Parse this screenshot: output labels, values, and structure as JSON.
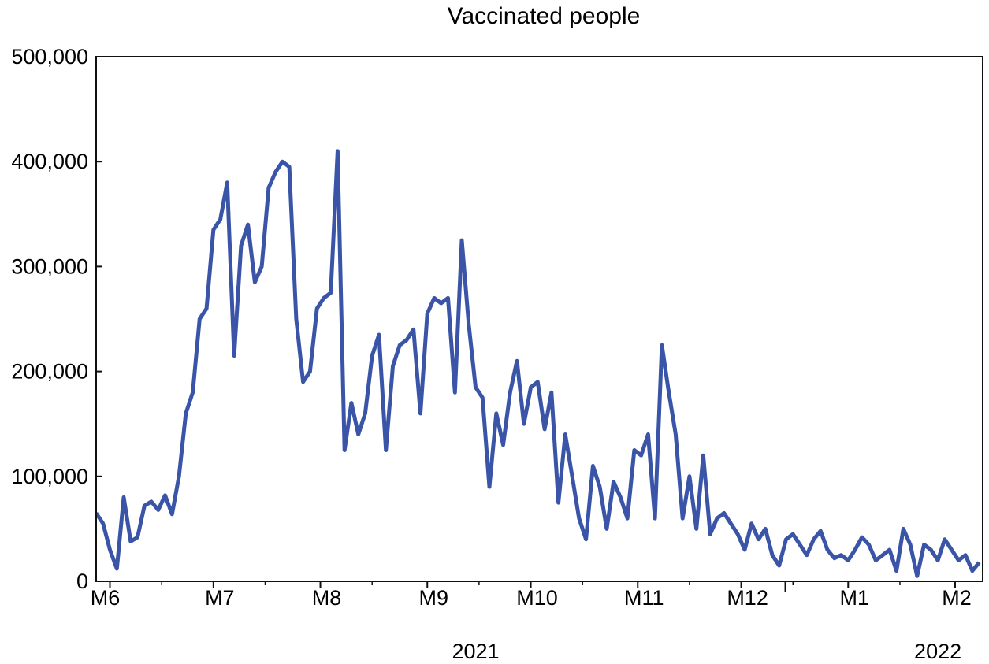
{
  "chart_data": {
    "type": "line",
    "title": "Vaccinated people",
    "xlabel": "",
    "ylabel": "",
    "ylim": [
      0,
      500000
    ],
    "yticks": [
      {
        "value": 0,
        "label": "0"
      },
      {
        "value": 100000,
        "label": "100,000"
      },
      {
        "value": 200000,
        "label": "200,000"
      },
      {
        "value": 300000,
        "label": "300,000"
      },
      {
        "value": 400000,
        "label": "400,000"
      },
      {
        "value": 500000,
        "label": "500,000"
      }
    ],
    "xlim": [
      "2021-05-28",
      "2022-02-09"
    ],
    "month_ticks": [
      {
        "date": "2021-06-01",
        "label": "M6"
      },
      {
        "date": "2021-07-01",
        "label": "M7"
      },
      {
        "date": "2021-08-01",
        "label": "M8"
      },
      {
        "date": "2021-09-01",
        "label": "M9"
      },
      {
        "date": "2021-10-01",
        "label": "M10"
      },
      {
        "date": "2021-11-01",
        "label": "M11"
      },
      {
        "date": "2021-12-01",
        "label": "M12"
      },
      {
        "date": "2022-01-01",
        "label": "M1"
      },
      {
        "date": "2022-02-01",
        "label": "M2"
      }
    ],
    "year_labels": [
      {
        "date": "2021-09-15",
        "label": "2021"
      },
      {
        "date": "2022-01-27",
        "label": "2022"
      }
    ],
    "grid": false,
    "line_color": "#3a55a8",
    "series": [
      {
        "x": [
          "2021-05-28",
          "2021-05-30",
          "2021-06-01",
          "2021-06-03",
          "2021-06-05",
          "2021-06-07",
          "2021-06-09",
          "2021-06-11",
          "2021-06-13",
          "2021-06-15",
          "2021-06-17",
          "2021-06-19",
          "2021-06-21",
          "2021-06-23",
          "2021-06-25",
          "2021-06-27",
          "2021-06-29",
          "2021-07-01",
          "2021-07-03",
          "2021-07-05",
          "2021-07-07",
          "2021-07-09",
          "2021-07-11",
          "2021-07-13",
          "2021-07-15",
          "2021-07-17",
          "2021-07-19",
          "2021-07-21",
          "2021-07-23",
          "2021-07-25",
          "2021-07-27",
          "2021-07-29",
          "2021-07-31",
          "2021-08-02",
          "2021-08-04",
          "2021-08-06",
          "2021-08-08",
          "2021-08-10",
          "2021-08-12",
          "2021-08-14",
          "2021-08-16",
          "2021-08-18",
          "2021-08-20",
          "2021-08-22",
          "2021-08-24",
          "2021-08-26",
          "2021-08-28",
          "2021-08-30",
          "2021-09-01",
          "2021-09-03",
          "2021-09-05",
          "2021-09-07",
          "2021-09-09",
          "2021-09-11",
          "2021-09-13",
          "2021-09-15",
          "2021-09-17",
          "2021-09-19",
          "2021-09-21",
          "2021-09-23",
          "2021-09-25",
          "2021-09-27",
          "2021-09-29",
          "2021-10-01",
          "2021-10-03",
          "2021-10-05",
          "2021-10-07",
          "2021-10-09",
          "2021-10-11",
          "2021-10-13",
          "2021-10-15",
          "2021-10-17",
          "2021-10-19",
          "2021-10-21",
          "2021-10-23",
          "2021-10-25",
          "2021-10-27",
          "2021-10-29",
          "2021-10-31",
          "2021-11-02",
          "2021-11-04",
          "2021-11-06",
          "2021-11-08",
          "2021-11-10",
          "2021-11-12",
          "2021-11-14",
          "2021-11-16",
          "2021-11-18",
          "2021-11-20",
          "2021-11-22",
          "2021-11-24",
          "2021-11-26",
          "2021-11-28",
          "2021-11-30",
          "2021-12-02",
          "2021-12-04",
          "2021-12-06",
          "2021-12-08",
          "2021-12-10",
          "2021-12-12",
          "2021-12-14",
          "2021-12-16",
          "2021-12-18",
          "2021-12-20",
          "2021-12-22",
          "2021-12-24",
          "2021-12-26",
          "2021-12-28",
          "2021-12-30",
          "2022-01-01",
          "2022-01-03",
          "2022-01-05",
          "2022-01-07",
          "2022-01-09",
          "2022-01-11",
          "2022-01-13",
          "2022-01-15",
          "2022-01-17",
          "2022-01-19",
          "2022-01-21",
          "2022-01-23",
          "2022-01-25",
          "2022-01-27",
          "2022-01-29",
          "2022-01-31",
          "2022-02-02",
          "2022-02-04",
          "2022-02-06",
          "2022-02-08"
        ],
        "y": [
          65000,
          55000,
          30000,
          12000,
          80000,
          38000,
          42000,
          72000,
          76000,
          68000,
          82000,
          64000,
          100000,
          160000,
          180000,
          250000,
          260000,
          335000,
          345000,
          380000,
          215000,
          320000,
          340000,
          285000,
          300000,
          375000,
          390000,
          400000,
          395000,
          250000,
          190000,
          200000,
          260000,
          270000,
          275000,
          410000,
          125000,
          170000,
          140000,
          160000,
          215000,
          235000,
          125000,
          205000,
          225000,
          230000,
          240000,
          160000,
          255000,
          270000,
          265000,
          270000,
          180000,
          325000,
          245000,
          185000,
          175000,
          90000,
          160000,
          130000,
          180000,
          210000,
          150000,
          185000,
          190000,
          145000,
          180000,
          75000,
          140000,
          100000,
          60000,
          40000,
          110000,
          90000,
          50000,
          95000,
          80000,
          60000,
          125000,
          120000,
          140000,
          60000,
          225000,
          180000,
          140000,
          60000,
          100000,
          50000,
          120000,
          45000,
          60000,
          65000,
          55000,
          45000,
          30000,
          55000,
          40000,
          50000,
          25000,
          15000,
          40000,
          45000,
          35000,
          25000,
          40000,
          48000,
          30000,
          22000,
          25000,
          20000,
          30000,
          42000,
          35000,
          20000,
          25000,
          30000,
          10000,
          50000,
          35000,
          5000,
          35000,
          30000,
          20000,
          40000,
          30000,
          20000,
          25000,
          10000,
          18000
        ]
      }
    ]
  }
}
